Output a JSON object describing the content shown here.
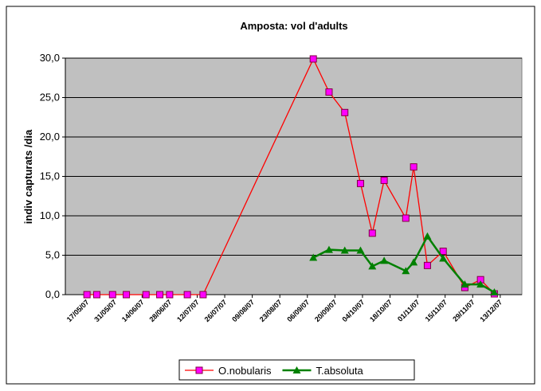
{
  "chart_data": {
    "type": "line",
    "title": "Amposta: vol d'adults",
    "y_label": "indiv capturats /dia",
    "x": [
      "17/05/07",
      "22/05/07",
      "30/05/07",
      "06/06/07",
      "16/06/07",
      "23/06/07",
      "28/06/07",
      "07/07/07",
      "15/07/07",
      "09/09/07",
      "17/09/07",
      "25/09/07",
      "03/10/07",
      "09/10/07",
      "15/10/07",
      "26/10/07",
      "30/10/07",
      "06/11/07",
      "14/11/07",
      "25/11/07",
      "03/12/07",
      "10/12/07"
    ],
    "series": [
      {
        "name": "O.nobularis",
        "color": "#ff0000",
        "marker_color": "#ff00ff",
        "marker": "square",
        "values": [
          0,
          0,
          0,
          0,
          0,
          0,
          0,
          0,
          0,
          29.9,
          25.7,
          23.1,
          14.1,
          7.8,
          14.5,
          9.7,
          16.2,
          3.7,
          5.5,
          0.9,
          1.9,
          0.1
        ]
      },
      {
        "name": "T.absoluta",
        "color": "#008000",
        "marker_color": "#008000",
        "marker": "triangle",
        "values": [
          null,
          null,
          null,
          null,
          null,
          null,
          null,
          null,
          null,
          4.7,
          5.7,
          5.6,
          5.6,
          3.6,
          4.3,
          3.0,
          4.1,
          7.4,
          4.6,
          1.3,
          1.3,
          0.3
        ]
      }
    ],
    "xlim": [
      "06/05/07",
      "24/12/07"
    ],
    "xticks": [
      "17/05/07",
      "31/05/07",
      "14/06/07",
      "28/06/07",
      "12/07/07",
      "26/07/07",
      "09/08/07",
      "23/08/07",
      "06/09/07",
      "20/09/07",
      "04/10/07",
      "18/10/07",
      "01/11/07",
      "15/11/07",
      "29/11/07",
      "13/12/07"
    ],
    "ylim": [
      0,
      30
    ],
    "yticks": [
      {
        "value": 0,
        "label": "0,0"
      },
      {
        "value": 5,
        "label": "5,0"
      },
      {
        "value": 10,
        "label": "10,0"
      },
      {
        "value": 15,
        "label": "15,0"
      },
      {
        "value": 20,
        "label": "20,0"
      },
      {
        "value": 25,
        "label": "25,0"
      },
      {
        "value": 30,
        "label": "30,0"
      }
    ],
    "grid": true,
    "legend": "bottom",
    "plot_background": "#c0c0c0"
  }
}
